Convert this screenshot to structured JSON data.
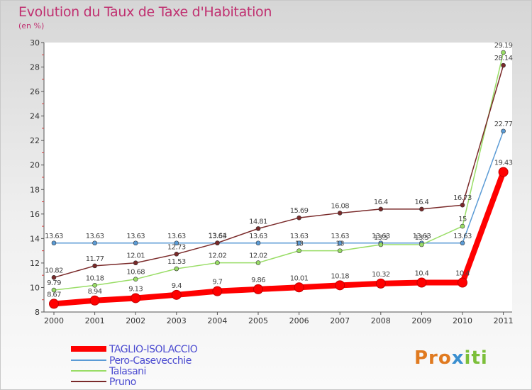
{
  "title": "Evolution du Taux de Taxe d'Habitation",
  "subtitle": "(en %)",
  "logo": {
    "text": "Proxiti",
    "parts": [
      "Pro",
      "x",
      "iti"
    ]
  },
  "chart_data": {
    "type": "line",
    "x": [
      2000,
      2001,
      2002,
      2003,
      2004,
      2005,
      2006,
      2007,
      2008,
      2009,
      2010,
      2011
    ],
    "ylim": [
      8,
      30
    ],
    "yticks": [
      8,
      10,
      12,
      14,
      16,
      18,
      20,
      22,
      24,
      26,
      28,
      30
    ],
    "grid": false,
    "legend": "bottom-left",
    "series": [
      {
        "name": "TAGLIO-ISOLACCIO",
        "color": "#ff0000",
        "width": 8,
        "values": [
          8.67,
          8.94,
          9.13,
          9.4,
          9.7,
          9.86,
          10.01,
          10.18,
          10.32,
          10.4,
          10.4,
          19.43
        ],
        "labels": [
          "8.67",
          "8.94",
          "9.13",
          "9.4",
          "9.7",
          "9.86",
          "10.01",
          "10.18",
          "10.32",
          "10.4",
          "10.4",
          "19.43"
        ]
      },
      {
        "name": "Pero-Casevecchie",
        "color": "#5b9bd5",
        "width": 1.5,
        "values": [
          13.63,
          13.63,
          13.63,
          13.63,
          13.63,
          13.63,
          13.63,
          13.63,
          13.63,
          13.63,
          13.63,
          22.77
        ],
        "labels": [
          "13.63",
          "13.63",
          "13.63",
          "13.63",
          "13.63",
          "13.63",
          "13.63",
          "13.63",
          "13.63",
          "13.63",
          "13.63",
          "22.77"
        ]
      },
      {
        "name": "Talasani",
        "color": "#99dd66",
        "width": 1.5,
        "values": [
          9.79,
          10.18,
          10.68,
          11.53,
          12.02,
          12.02,
          13,
          13,
          13.5,
          13.5,
          15,
          29.19
        ],
        "labels": [
          "9.79",
          "10.18",
          "10.68",
          "11.53",
          "12.02",
          "12.02",
          "13",
          "13",
          "13.5",
          "13.5",
          "15",
          "29.19"
        ]
      },
      {
        "name": "Pruno",
        "color": "#7a2a2a",
        "width": 1.5,
        "values": [
          10.82,
          11.77,
          12.01,
          12.73,
          13.64,
          14.81,
          15.69,
          16.08,
          16.4,
          16.4,
          16.73,
          28.14
        ],
        "labels": [
          "10.82",
          "11.77",
          "12.01",
          "12.73",
          "13.64",
          "14.81",
          "15.69",
          "16.08",
          "16.4",
          "16.4",
          "16.73",
          "28.14"
        ]
      }
    ]
  }
}
